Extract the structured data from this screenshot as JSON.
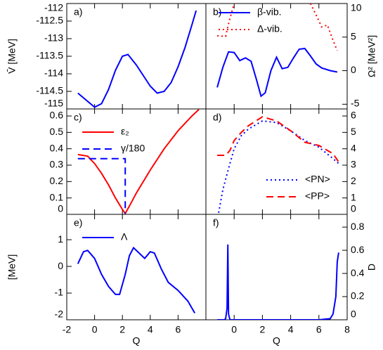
{
  "chart_data": [
    {
      "type": "line",
      "annotation": "a)",
      "ylabel": "V̄ [MeV]",
      "yaxis_side": "left",
      "xlim": [
        -2,
        8
      ],
      "xticks": [
        -2,
        0,
        2,
        4,
        6
      ],
      "xtick_labels": false,
      "ylim": [
        -115,
        -112
      ],
      "yticks": [
        -115,
        -114.5,
        -114,
        -113.5,
        -113,
        -112.5,
        -112
      ],
      "series": [
        {
          "color": "#0000ff",
          "dash": "solid",
          "x": [
            -1.2,
            -0.6,
            0,
            0.5,
            1,
            1.5,
            2,
            2.4,
            3,
            3.5,
            4,
            4.5,
            5,
            5.5,
            6,
            6.5,
            7,
            7.3
          ],
          "values": [
            -114.55,
            -114.75,
            -114.95,
            -114.85,
            -114.45,
            -113.9,
            -113.5,
            -113.45,
            -113.75,
            -114.05,
            -114.35,
            -114.55,
            -114.5,
            -114.25,
            -113.8,
            -113.25,
            -112.6,
            -112.2
          ]
        }
      ]
    },
    {
      "type": "line",
      "annotation": "b)",
      "ylabel": "Ω² [MeV²]",
      "yaxis_side": "right",
      "legend": "upper left",
      "xlim": [
        -2,
        8
      ],
      "xticks": [
        0,
        2,
        4,
        6,
        8
      ],
      "xtick_labels": false,
      "ylim": [
        -5.7,
        10
      ],
      "yticks": [
        -5,
        0,
        5,
        10
      ],
      "series": [
        {
          "name": "β-vib.",
          "color": "#0000ff",
          "dash": "solid",
          "x": [
            -1.2,
            -0.8,
            -0.4,
            0,
            0.4,
            0.8,
            1.2,
            1.6,
            1.9,
            2.2,
            2.6,
            3,
            3.4,
            3.8,
            4.2,
            4.6,
            5,
            5.4,
            5.8,
            6.2,
            6.8,
            7.3
          ],
          "values": [
            -2.5,
            0.5,
            2.8,
            2.7,
            1.5,
            1.9,
            1.4,
            -1.5,
            -3.8,
            -3.3,
            0,
            2,
            0.3,
            0.5,
            1.9,
            3.2,
            3.3,
            2.2,
            1,
            0.4,
            0,
            -0.2
          ]
        },
        {
          "name": "Δ-vib.",
          "color": "#ff0000",
          "dash": "dotted",
          "x": [
            -1.2,
            -0.6,
            -0.4,
            -0.2,
            0,
            null,
            5.4,
            5.8,
            6.2,
            6.6,
            7.0,
            7.3
          ],
          "values": [
            5.2,
            5.1,
            7,
            8.5,
            10,
            null,
            10,
            8.3,
            6.5,
            6.8,
            4.5,
            3
          ]
        }
      ]
    },
    {
      "type": "line",
      "annotation": "c)",
      "yaxis_side": "left",
      "legend": "upper left",
      "xlim": [
        -2,
        8
      ],
      "xticks": [
        -2,
        0,
        2,
        4,
        6
      ],
      "xtick_labels": false,
      "ylim": [
        0,
        0.643
      ],
      "yticks": [
        0,
        0.1,
        0.2,
        0.3,
        0.4,
        0.5,
        0.6
      ],
      "series": [
        {
          "name": "ε₂",
          "color": "#ff0000",
          "dash": "solid",
          "x": [
            -1.2,
            -0.5,
            0,
            0.5,
            1,
            1.5,
            2,
            2.2,
            2.5,
            3,
            4,
            5,
            6,
            7,
            7.5
          ],
          "values": [
            0.365,
            0.355,
            0.31,
            0.25,
            0.18,
            0.1,
            0.03,
            0.005,
            0.05,
            0.13,
            0.27,
            0.4,
            0.51,
            0.6,
            0.64
          ]
        },
        {
          "name": "γ/180",
          "color": "#0000ff",
          "dash": "dashed",
          "x": [
            -1.2,
            2.2,
            2.2
          ],
          "values": [
            0.34,
            0.34,
            0.005
          ]
        }
      ]
    },
    {
      "type": "line",
      "annotation": "d)",
      "yaxis_side": "right",
      "legend": "lower right",
      "xlim": [
        -2,
        8
      ],
      "xticks": [
        0,
        2,
        4,
        6,
        8
      ],
      "xtick_labels": false,
      "ylim": [
        0,
        6.43
      ],
      "yticks": [
        0,
        1,
        2,
        3,
        4,
        5,
        6
      ],
      "series": [
        {
          "name": "<PN>",
          "color": "#0000ff",
          "dash": "dotted",
          "x": [
            -1.1,
            -0.8,
            -0.4,
            0,
            0.5,
            1,
            2,
            3,
            4,
            5,
            6,
            7,
            7.4
          ],
          "values": [
            0.1,
            1.5,
            2.8,
            4,
            4.8,
            5.2,
            5.7,
            5.6,
            5.1,
            4.5,
            4.1,
            3.4,
            3.1
          ]
        },
        {
          "name": "<PP>",
          "color": "#ff0000",
          "dash": "dashed",
          "x": [
            -1.2,
            -0.6,
            -0.3,
            0,
            0.5,
            1,
            2,
            3,
            4,
            5,
            6,
            7,
            7.4
          ],
          "values": [
            3.6,
            3.6,
            3.9,
            4.5,
            5.0,
            5.4,
            5.95,
            5.7,
            5.1,
            4.4,
            4.2,
            3.7,
            3.2
          ]
        }
      ]
    },
    {
      "type": "line",
      "annotation": "e)",
      "ylabel": "[MeV]",
      "xlabel": "Q",
      "yaxis_side": "left",
      "legend": "upper left",
      "xlim": [
        -2,
        8
      ],
      "xticks": [
        -2,
        0,
        2,
        4,
        6
      ],
      "ylim": [
        -2,
        1.95
      ],
      "yticks": [
        -2,
        -1,
        0,
        1
      ],
      "series": [
        {
          "name": "Λ",
          "color": "#0000ff",
          "dash": "solid",
          "x": [
            -1.2,
            -0.8,
            -0.5,
            0,
            0.5,
            1,
            1.5,
            1.8,
            2.2,
            2.5,
            2.8,
            3.2,
            3.6,
            4,
            4.3,
            4.8,
            5.3,
            6,
            6.7,
            7.2
          ],
          "values": [
            0.1,
            0.55,
            0.6,
            0.3,
            -0.3,
            -0.75,
            -1.05,
            -1.05,
            -0.3,
            0.4,
            0.7,
            0.5,
            0.3,
            0.55,
            0.5,
            -0.1,
            -0.6,
            -0.9,
            -1.3,
            -1.75
          ]
        }
      ]
    },
    {
      "type": "line",
      "annotation": "f)",
      "ylabel": "D",
      "xlabel": "Q",
      "yaxis_side": "right",
      "xlim": [
        -2,
        8
      ],
      "xticks": [
        0,
        2,
        4,
        6,
        8
      ],
      "ylim": [
        0,
        0.91
      ],
      "yticks": [
        0,
        0.2,
        0.4,
        0.6,
        0.8
      ],
      "series": [
        {
          "color": "#0000ff",
          "dash": "solid",
          "x": [
            -1.2,
            -0.7,
            -0.6,
            -0.5,
            -0.45,
            -0.4,
            -0.3,
            0,
            2,
            4,
            6,
            6.8,
            7.0,
            7.2,
            7.3,
            7.4
          ],
          "values": [
            0,
            0,
            0.01,
            0.1,
            0.65,
            0.05,
            0,
            0,
            0,
            0,
            0,
            0.01,
            0.05,
            0.2,
            0.5,
            0.58
          ]
        }
      ]
    }
  ]
}
